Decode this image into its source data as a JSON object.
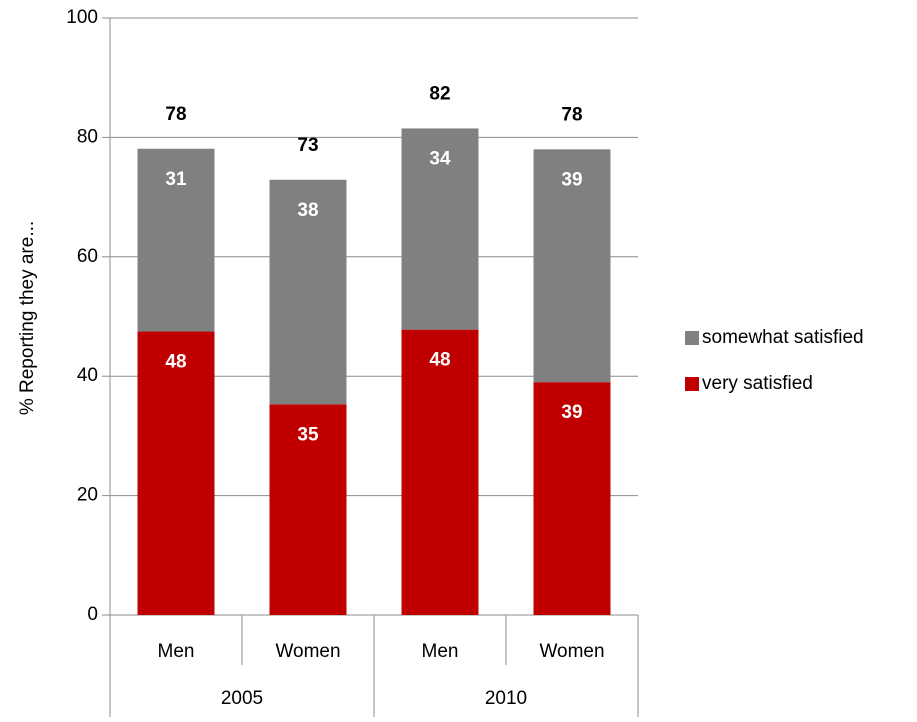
{
  "chart_data": {
    "type": "bar",
    "stacked": true,
    "categories": [
      "Men",
      "Women",
      "Men",
      "Women"
    ],
    "groups": [
      {
        "label": "2005",
        "span": 2
      },
      {
        "label": "2010",
        "span": 2
      }
    ],
    "series": [
      {
        "name": "very satisfied",
        "color": "#c00000",
        "values": [
          47.5,
          35.3,
          47.8,
          39.0
        ],
        "labels": [
          "48",
          "35",
          "48",
          "39"
        ]
      },
      {
        "name": "somewhat satisfied",
        "color": "#808080",
        "values": [
          30.6,
          37.6,
          33.7,
          39.0
        ],
        "labels": [
          "31",
          "38",
          "34",
          "39"
        ]
      }
    ],
    "totals": [
      "78",
      "73",
      "82",
      "78"
    ],
    "title": "",
    "xlabel": "",
    "ylabel": "% Reporting they are...",
    "ylim": [
      0,
      100
    ],
    "yticks": [
      0,
      20,
      40,
      60,
      80,
      100
    ],
    "grid": true,
    "legend": "right"
  }
}
